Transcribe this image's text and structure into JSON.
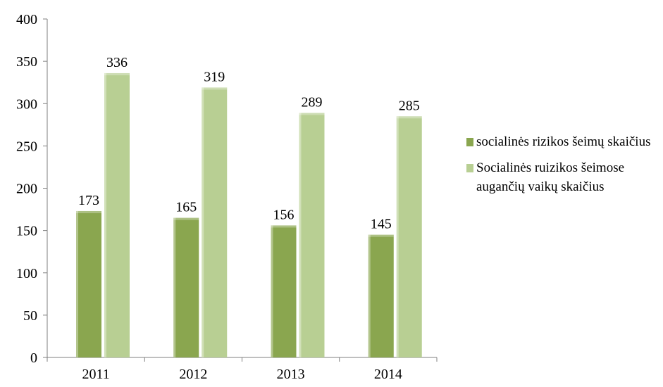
{
  "chart_data": {
    "type": "bar",
    "categories": [
      "2011",
      "2012",
      "2013",
      "2014"
    ],
    "series": [
      {
        "name": "socialinės rizikos šeimų skaičius",
        "values": [
          173,
          165,
          156,
          145
        ],
        "color": "#8aa64f"
      },
      {
        "name": "Socialinės ruizikos šeimose augančių vaikų skaičius",
        "values": [
          336,
          319,
          289,
          285
        ],
        "color": "#b8cf93"
      }
    ],
    "ylim": [
      0,
      400
    ],
    "yticks": [
      0,
      50,
      100,
      150,
      200,
      250,
      300,
      350,
      400
    ],
    "grid": false,
    "legend": "right"
  }
}
